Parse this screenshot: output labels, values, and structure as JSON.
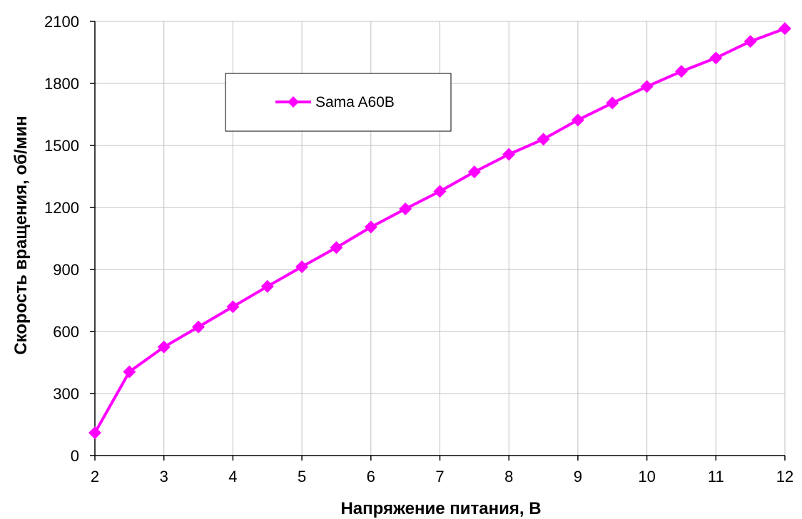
{
  "chart_data": {
    "type": "line",
    "xlabel": "Напряжение питания, В",
    "ylabel": "Скорость вращения, об/мин",
    "xlim": [
      2,
      12
    ],
    "ylim": [
      0,
      2100
    ],
    "x_ticks": [
      2,
      3,
      4,
      5,
      6,
      7,
      8,
      9,
      10,
      11,
      12
    ],
    "y_ticks": [
      0,
      300,
      600,
      900,
      1200,
      1500,
      1800,
      2100
    ],
    "grid": true,
    "legend_position": "top-left",
    "series": [
      {
        "name": "Sama A60B",
        "color": "#ff00ff",
        "marker": "diamond",
        "x": [
          2,
          2.5,
          3,
          3.5,
          4,
          4.5,
          5,
          5.5,
          6,
          6.5,
          7,
          7.5,
          8,
          8.5,
          9,
          9.5,
          10,
          10.5,
          11,
          11.5,
          12
        ],
        "y": [
          110,
          405,
          525,
          622,
          720,
          818,
          913,
          1006,
          1105,
          1193,
          1278,
          1372,
          1457,
          1530,
          1623,
          1705,
          1785,
          1858,
          1923,
          2003,
          2065
        ]
      }
    ]
  }
}
